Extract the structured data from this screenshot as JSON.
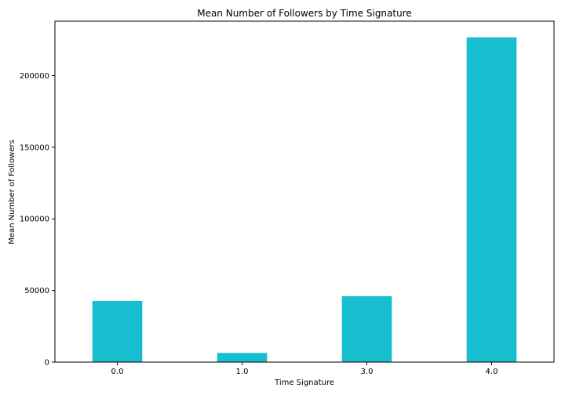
{
  "chart_data": {
    "type": "bar",
    "title": "Mean Number of Followers by Time Signature",
    "xlabel": "Time Signature",
    "ylabel": "Mean Number of Followers",
    "categories": [
      "0.0",
      "1.0",
      "3.0",
      "4.0"
    ],
    "values": [
      42700,
      6400,
      46000,
      226700
    ],
    "ylim": [
      0,
      238000
    ],
    "yticks": [
      0,
      50000,
      100000,
      150000,
      200000
    ],
    "ytick_labels": [
      "0",
      "50000",
      "100000",
      "150000",
      "200000"
    ],
    "bar_color": "#17becf",
    "grid": false,
    "legend": "none"
  }
}
